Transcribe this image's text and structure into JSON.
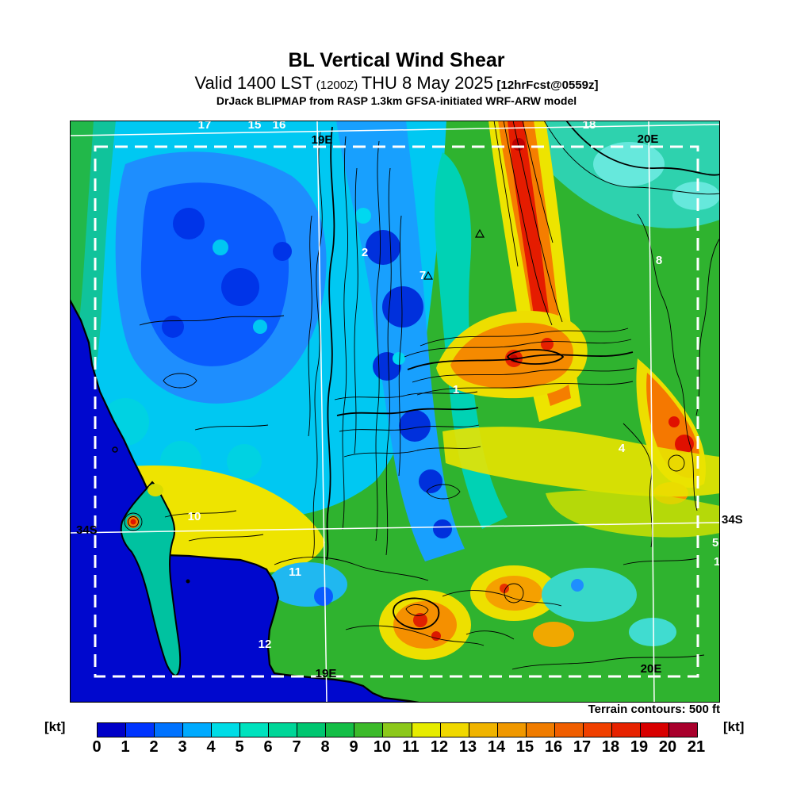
{
  "header": {
    "title": "BL Vertical Wind Shear",
    "valid_prefix": "Valid 1400 LST",
    "valid_zulu": "(1200Z)",
    "valid_date": "THU 8 May 2025",
    "valid_fcst": "[12hrFcst@0559z]",
    "model_line": "DrJack BLIPMAP from RASP 1.3km GFSA-initiated WRF-ARW model"
  },
  "map": {
    "graticule_labels": {
      "lon19_top": "19E",
      "lon20_top": "20E",
      "lon19_bottom": "19E",
      "lon20_bottom": "20E",
      "lat34_left": "34S",
      "lat34_right": "34S"
    },
    "spot_labels": {
      "n17": "17",
      "n15": "15",
      "n16": "16",
      "n18": "18",
      "n2": "2",
      "n7": "7",
      "n1c": "1",
      "n8": "8",
      "n4": "4",
      "n10": "10",
      "n11": "11",
      "n12": "12",
      "n5r": "5",
      "n1r": "1"
    }
  },
  "footer": {
    "terrain_note": "Terrain contours: 500 ft",
    "unit_left": "[kt]",
    "unit_right": "[kt]"
  },
  "colorbar": {
    "ticks": [
      0,
      1,
      2,
      3,
      4,
      5,
      6,
      7,
      8,
      9,
      10,
      11,
      12,
      13,
      14,
      15,
      16,
      17,
      18,
      19,
      20,
      21
    ],
    "colors": [
      "#0000C8",
      "#0034FE",
      "#0072FE",
      "#00AAFE",
      "#00DCE6",
      "#00E2BE",
      "#00D698",
      "#00C670",
      "#14BE46",
      "#3CBA2A",
      "#8CC81A",
      "#E6EC00",
      "#F0D800",
      "#F0B400",
      "#F09800",
      "#F07C00",
      "#F05E00",
      "#F04000",
      "#E62200",
      "#D80000",
      "#A8002C"
    ]
  }
}
